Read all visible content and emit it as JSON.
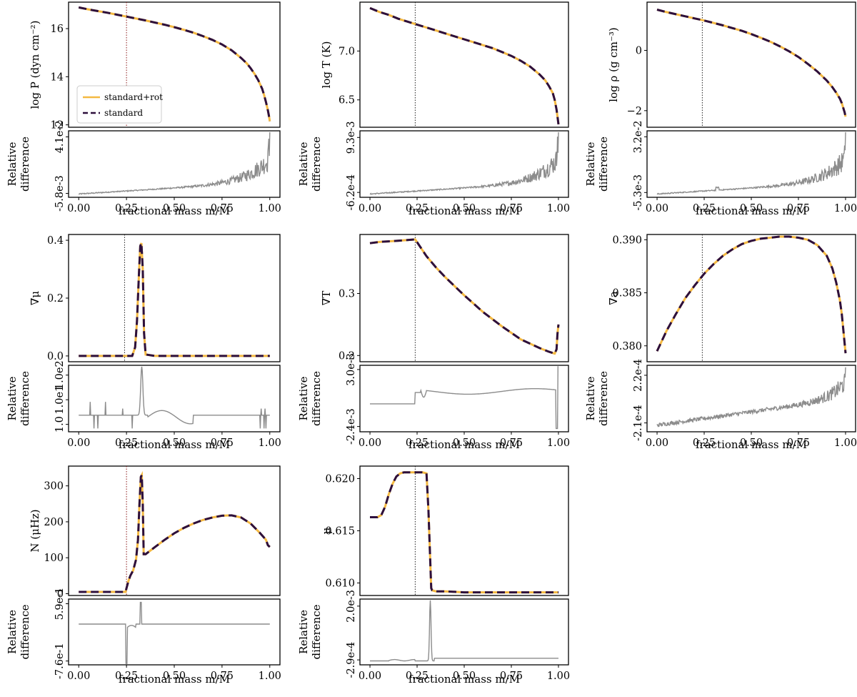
{
  "figure": {
    "colors": {
      "rot": "#f4b942",
      "standard": "#2d0f3c",
      "diff": "#8c8c8c",
      "vline_red": "#8b1a1a",
      "vline_black": "#222222"
    },
    "legend": {
      "items": [
        "standard+rot",
        "standard"
      ]
    },
    "xticks": [
      0.0,
      0.25,
      0.5,
      0.75,
      1.0
    ],
    "xtick_labels": [
      "0.00",
      "0.25",
      "0.50",
      "0.75",
      "1.00"
    ],
    "xlabel": "fractional mass m/M",
    "diff_ylabel": [
      "Relative",
      "difference"
    ]
  },
  "chart_data": [
    {
      "type": "line",
      "id": "logP",
      "ylabel": "log P (dyn cm⁻²)",
      "ylim": [
        11.9,
        17.1
      ],
      "yticks": [
        12,
        14,
        16
      ],
      "ytick_labels": [
        "12",
        "14",
        "16"
      ],
      "vline": 0.25,
      "vline_color": "red",
      "legend": true,
      "x": [
        0,
        0.05,
        0.1,
        0.15,
        0.2,
        0.25,
        0.3,
        0.35,
        0.4,
        0.45,
        0.5,
        0.55,
        0.6,
        0.65,
        0.7,
        0.75,
        0.8,
        0.85,
        0.88,
        0.9,
        0.92,
        0.94,
        0.96,
        0.97,
        0.98,
        0.99,
        0.995,
        1.0
      ],
      "y": [
        16.88,
        16.8,
        16.73,
        16.66,
        16.58,
        16.5,
        16.42,
        16.34,
        16.25,
        16.16,
        16.06,
        15.95,
        15.83,
        15.69,
        15.53,
        15.34,
        15.1,
        14.78,
        14.55,
        14.35,
        14.12,
        13.85,
        13.5,
        13.25,
        12.95,
        12.6,
        12.4,
        12.15
      ],
      "diff": {
        "yticks": [
          -0.0058,
          0.041
        ],
        "ytick_labels": [
          "-5.8e-3",
          "4.1e-2"
        ],
        "ylim": [
          -0.009,
          0.046
        ],
        "shape": "rising_noise"
      }
    },
    {
      "type": "line",
      "id": "logT",
      "ylabel": "log T (K)",
      "ylim": [
        6.22,
        7.5
      ],
      "yticks": [
        6.5,
        7.0
      ],
      "ytick_labels": [
        "6.5",
        "7.0"
      ],
      "vline": 0.24,
      "vline_color": "black",
      "x": [
        0,
        0.05,
        0.1,
        0.15,
        0.2,
        0.25,
        0.3,
        0.35,
        0.4,
        0.45,
        0.5,
        0.55,
        0.6,
        0.65,
        0.7,
        0.75,
        0.8,
        0.85,
        0.9,
        0.93,
        0.95,
        0.97,
        0.98,
        0.99,
        0.995,
        1.0
      ],
      "y": [
        7.44,
        7.4,
        7.37,
        7.33,
        7.3,
        7.27,
        7.24,
        7.21,
        7.18,
        7.15,
        7.12,
        7.09,
        7.06,
        7.03,
        6.99,
        6.95,
        6.9,
        6.84,
        6.76,
        6.7,
        6.64,
        6.57,
        6.5,
        6.4,
        6.33,
        6.25
      ],
      "diff": {
        "yticks": [
          -0.00062,
          0.0093
        ],
        "ytick_labels": [
          "-6.2e-4",
          "9.3e-3"
        ],
        "ylim": [
          -0.0015,
          0.0105
        ],
        "shape": "rising_noise"
      }
    },
    {
      "type": "line",
      "id": "logrho",
      "ylabel": "log ρ (g cm⁻³)",
      "ylim": [
        -2.55,
        1.6
      ],
      "yticks": [
        -2,
        0
      ],
      "ytick_labels": [
        "−2",
        "0"
      ],
      "vline": 0.24,
      "vline_color": "black",
      "x": [
        0,
        0.05,
        0.1,
        0.15,
        0.2,
        0.25,
        0.3,
        0.35,
        0.4,
        0.45,
        0.5,
        0.55,
        0.6,
        0.65,
        0.7,
        0.75,
        0.8,
        0.85,
        0.9,
        0.93,
        0.95,
        0.97,
        0.98,
        0.99,
        0.995,
        1.0
      ],
      "y": [
        1.35,
        1.27,
        1.2,
        1.13,
        1.06,
        0.99,
        0.91,
        0.83,
        0.74,
        0.65,
        0.54,
        0.42,
        0.29,
        0.14,
        -0.03,
        -0.22,
        -0.45,
        -0.7,
        -1.0,
        -1.22,
        -1.4,
        -1.6,
        -1.75,
        -1.95,
        -2.05,
        -2.2
      ],
      "diff": {
        "yticks": [
          -0.0053,
          0.032
        ],
        "ytick_labels": [
          "-5.3e-3",
          "3.2e-2"
        ],
        "ylim": [
          -0.0085,
          0.036
        ],
        "shape": "rising_noise_bump"
      }
    },
    {
      "type": "line",
      "id": "grad_mu",
      "ylabel": "∇μ",
      "ylim": [
        -0.02,
        0.42
      ],
      "yticks": [
        0.0,
        0.2,
        0.4
      ],
      "ytick_labels": [
        "0.0",
        "0.2",
        "0.4"
      ],
      "vline": 0.24,
      "vline_color": "black",
      "x": [
        0,
        0.1,
        0.2,
        0.28,
        0.295,
        0.305,
        0.315,
        0.322,
        0.328,
        0.335,
        0.342,
        0.35,
        0.4,
        0.6,
        0.8,
        1.0
      ],
      "y": [
        0,
        0,
        0,
        0,
        0.03,
        0.12,
        0.28,
        0.38,
        0.39,
        0.3,
        0.08,
        0.005,
        0,
        0,
        0,
        0
      ],
      "diff": {
        "yticks": [
          1.0,
          10,
          100
        ],
        "ytick_labels": [
          "1.0",
          "1.0e1",
          "1.0e2"
        ],
        "ylim": [
          0.5,
          250
        ],
        "log": true,
        "shape": "spikes_log"
      }
    },
    {
      "type": "line",
      "id": "grad_T",
      "ylabel": "∇T",
      "ylim": [
        0.19,
        0.395
      ],
      "yticks": [
        0.2,
        0.3
      ],
      "ytick_labels": [
        "0.2",
        "0.3"
      ],
      "vline": 0.24,
      "vline_color": "black",
      "x": [
        0,
        0.05,
        0.1,
        0.15,
        0.2,
        0.24,
        0.3,
        0.35,
        0.4,
        0.5,
        0.6,
        0.7,
        0.8,
        0.9,
        0.95,
        0.98,
        0.99,
        0.995,
        1.0
      ],
      "y": [
        0.381,
        0.383,
        0.384,
        0.385,
        0.386,
        0.387,
        0.36,
        0.342,
        0.326,
        0.297,
        0.27,
        0.247,
        0.226,
        0.212,
        0.206,
        0.203,
        0.21,
        0.235,
        0.25
      ],
      "diff": {
        "yticks": [
          -0.0024,
          0.003
        ],
        "ytick_labels": [
          "-2.4e-3",
          "3.0e-3"
        ],
        "ylim": [
          -0.0029,
          0.0034
        ],
        "shape": "step_plateau"
      }
    },
    {
      "type": "line",
      "id": "grad_a",
      "ylabel": "∇a",
      "ylim": [
        0.3785,
        0.3905
      ],
      "yticks": [
        0.38,
        0.385,
        0.39
      ],
      "ytick_labels": [
        "0.380",
        "0.385",
        "0.390"
      ],
      "vline": 0.24,
      "vline_color": "black",
      "x": [
        0,
        0.05,
        0.1,
        0.15,
        0.2,
        0.25,
        0.3,
        0.35,
        0.4,
        0.45,
        0.5,
        0.55,
        0.6,
        0.65,
        0.7,
        0.75,
        0.8,
        0.85,
        0.9,
        0.93,
        0.95,
        0.97,
        0.98,
        0.99,
        1.0
      ],
      "y": [
        0.3795,
        0.3814,
        0.383,
        0.3845,
        0.3857,
        0.3868,
        0.3877,
        0.3885,
        0.3891,
        0.3896,
        0.3899,
        0.3901,
        0.3902,
        0.3903,
        0.3903,
        0.3902,
        0.39,
        0.3895,
        0.3885,
        0.3873,
        0.386,
        0.3843,
        0.383,
        0.3812,
        0.3793
      ],
      "diff": {
        "yticks": [
          -0.00021,
          0.00022
        ],
        "ytick_labels": [
          "-2.1e-4",
          "2.2e-4"
        ],
        "ylim": [
          -0.00029,
          0.00031
        ],
        "shape": "linear_rise_noise"
      }
    },
    {
      "type": "line",
      "id": "brunt_N",
      "ylabel": "N (μHz)",
      "ylim": [
        -5,
        355
      ],
      "yticks": [
        0,
        100,
        200,
        300
      ],
      "ytick_labels": [
        "0",
        "100",
        "200",
        "300"
      ],
      "vline": 0.25,
      "vline_color": "red",
      "x": [
        0,
        0.1,
        0.2,
        0.245,
        0.25,
        0.26,
        0.27,
        0.285,
        0.3,
        0.31,
        0.318,
        0.325,
        0.33,
        0.335,
        0.34,
        0.35,
        0.4,
        0.45,
        0.5,
        0.55,
        0.6,
        0.65,
        0.7,
        0.75,
        0.8,
        0.85,
        0.9,
        0.95,
        0.98,
        0.99,
        1.0
      ],
      "y": [
        5,
        5,
        5,
        5,
        15,
        35,
        50,
        65,
        95,
        150,
        250,
        325,
        330,
        250,
        110,
        110,
        130,
        150,
        168,
        183,
        195,
        205,
        212,
        217,
        218,
        212,
        195,
        168,
        150,
        135,
        130
      ],
      "diff": {
        "yticks": [
          -0.76,
          0.59
        ],
        "ytick_labels": [
          "-7.6e-1",
          "5.9e-1"
        ],
        "ylim": [
          -0.85,
          0.7
        ],
        "shape": "n_spikes"
      }
    },
    {
      "type": "line",
      "id": "mu",
      "ylabel": "μ",
      "ylim": [
        0.6088,
        0.6212
      ],
      "yticks": [
        0.61,
        0.615,
        0.62
      ],
      "ytick_labels": [
        "0.610",
        "0.615",
        "0.620"
      ],
      "vline": 0.24,
      "vline_color": "black",
      "x": [
        0,
        0.02,
        0.04,
        0.06,
        0.08,
        0.1,
        0.12,
        0.14,
        0.16,
        0.18,
        0.2,
        0.22,
        0.24,
        0.28,
        0.3,
        0.31,
        0.32,
        0.325,
        0.33,
        0.35,
        0.4,
        0.5,
        0.6,
        0.7,
        0.8,
        0.9,
        1.0
      ],
      "y": [
        0.6163,
        0.6163,
        0.6163,
        0.6165,
        0.6173,
        0.6185,
        0.6195,
        0.6202,
        0.6205,
        0.6206,
        0.6206,
        0.6206,
        0.6206,
        0.6206,
        0.6205,
        0.617,
        0.612,
        0.6095,
        0.6093,
        0.6092,
        0.6092,
        0.6091,
        0.6091,
        0.6091,
        0.6091,
        0.6091,
        0.6091
      ],
      "diff": {
        "yticks": [
          -0.00029,
          0.002
        ],
        "ytick_labels": [
          "-2.9e-4",
          "2.0e-3"
        ],
        "ylim": [
          -0.0005,
          0.0023
        ],
        "shape": "mu_spike"
      }
    }
  ]
}
